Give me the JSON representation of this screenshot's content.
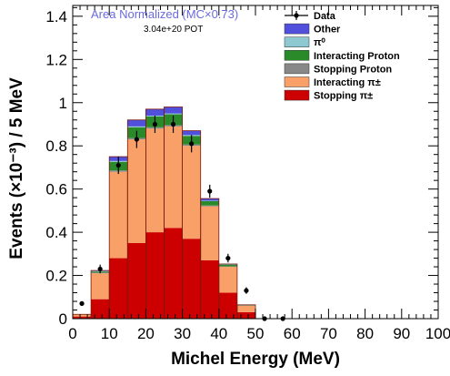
{
  "chart_data": {
    "type": "bar",
    "subtype": "stacked-histogram-with-data-points",
    "annotations": {
      "normalization": "Area Normalized (MC×0.73)",
      "normalization_color": "#6a6ae0",
      "pot": "3.04e+20 POT"
    },
    "xlabel": "Michel Energy (MeV)",
    "ylabel": "Events (×10⁻³) / 5 MeV",
    "xlim": [
      0,
      100
    ],
    "ylim": [
      0,
      1.45
    ],
    "xticks": [
      0,
      10,
      20,
      30,
      40,
      50,
      60,
      70,
      80,
      90,
      100
    ],
    "xtick_labels": [
      "0",
      "10",
      "20",
      "30",
      "40",
      "50",
      "60",
      "70",
      "80",
      "90",
      "100"
    ],
    "yticks": [
      0,
      0.2,
      0.4,
      0.6,
      0.8,
      1.0,
      1.2,
      1.4
    ],
    "ytick_labels": [
      "0",
      "0.2",
      "0.4",
      "0.6",
      "0.8",
      "1",
      "1.2",
      "1.4"
    ],
    "grid": false,
    "legend_position": "top-right",
    "bin_edges": [
      0,
      5,
      10,
      15,
      20,
      25,
      30,
      35,
      40,
      45,
      50
    ],
    "series": [
      {
        "name": "Stopping π±",
        "color": "#cc0000",
        "values": [
          0.01,
          0.09,
          0.28,
          0.35,
          0.4,
          0.42,
          0.37,
          0.27,
          0.12,
          0.03
        ]
      },
      {
        "name": "Interacting π±",
        "color": "#f8a068",
        "values": [
          0.01,
          0.12,
          0.4,
          0.48,
          0.48,
          0.47,
          0.43,
          0.25,
          0.12,
          0.03
        ]
      },
      {
        "name": "Stopping Proton",
        "color": "#888888",
        "values": [
          0.0,
          0.003,
          0.006,
          0.006,
          0.006,
          0.006,
          0.006,
          0.004,
          0.002,
          0.001
        ]
      },
      {
        "name": "Interacting Proton",
        "color": "#2a8a2a",
        "values": [
          0.0,
          0.005,
          0.04,
          0.05,
          0.05,
          0.05,
          0.04,
          0.02,
          0.008,
          0.002
        ]
      },
      {
        "name": "π⁰",
        "color": "#8ec8d0",
        "values": [
          0.0,
          0.002,
          0.004,
          0.004,
          0.004,
          0.004,
          0.004,
          0.002,
          0.001,
          0.0
        ]
      },
      {
        "name": "Other",
        "color": "#5050dd",
        "values": [
          0.0,
          0.003,
          0.02,
          0.03,
          0.03,
          0.03,
          0.02,
          0.01,
          0.002,
          0.001
        ]
      }
    ],
    "data": {
      "name": "Data",
      "x": [
        2.5,
        7.5,
        12.5,
        17.5,
        22.5,
        27.5,
        32.5,
        37.5,
        42.5,
        47.5,
        52.5,
        57.5
      ],
      "y": [
        0.07,
        0.23,
        0.71,
        0.83,
        0.9,
        0.9,
        0.81,
        0.59,
        0.28,
        0.13,
        0.0,
        0.0
      ],
      "yerr": [
        0.01,
        0.02,
        0.04,
        0.04,
        0.04,
        0.04,
        0.04,
        0.03,
        0.02,
        0.015,
        0.0,
        0.0
      ]
    },
    "legend": [
      {
        "label": "Data",
        "kind": "marker",
        "color": "#000000"
      },
      {
        "label": "Other",
        "kind": "box",
        "color": "#5050dd"
      },
      {
        "label": "π⁰",
        "kind": "box",
        "color": "#8ec8d0"
      },
      {
        "label": "Interacting Proton",
        "kind": "box",
        "color": "#2a8a2a"
      },
      {
        "label": "Stopping Proton",
        "kind": "box",
        "color": "#888888"
      },
      {
        "label": "Interacting π±",
        "kind": "box",
        "color": "#f8a068"
      },
      {
        "label": "Stopping π±",
        "kind": "box",
        "color": "#cc0000"
      }
    ]
  }
}
